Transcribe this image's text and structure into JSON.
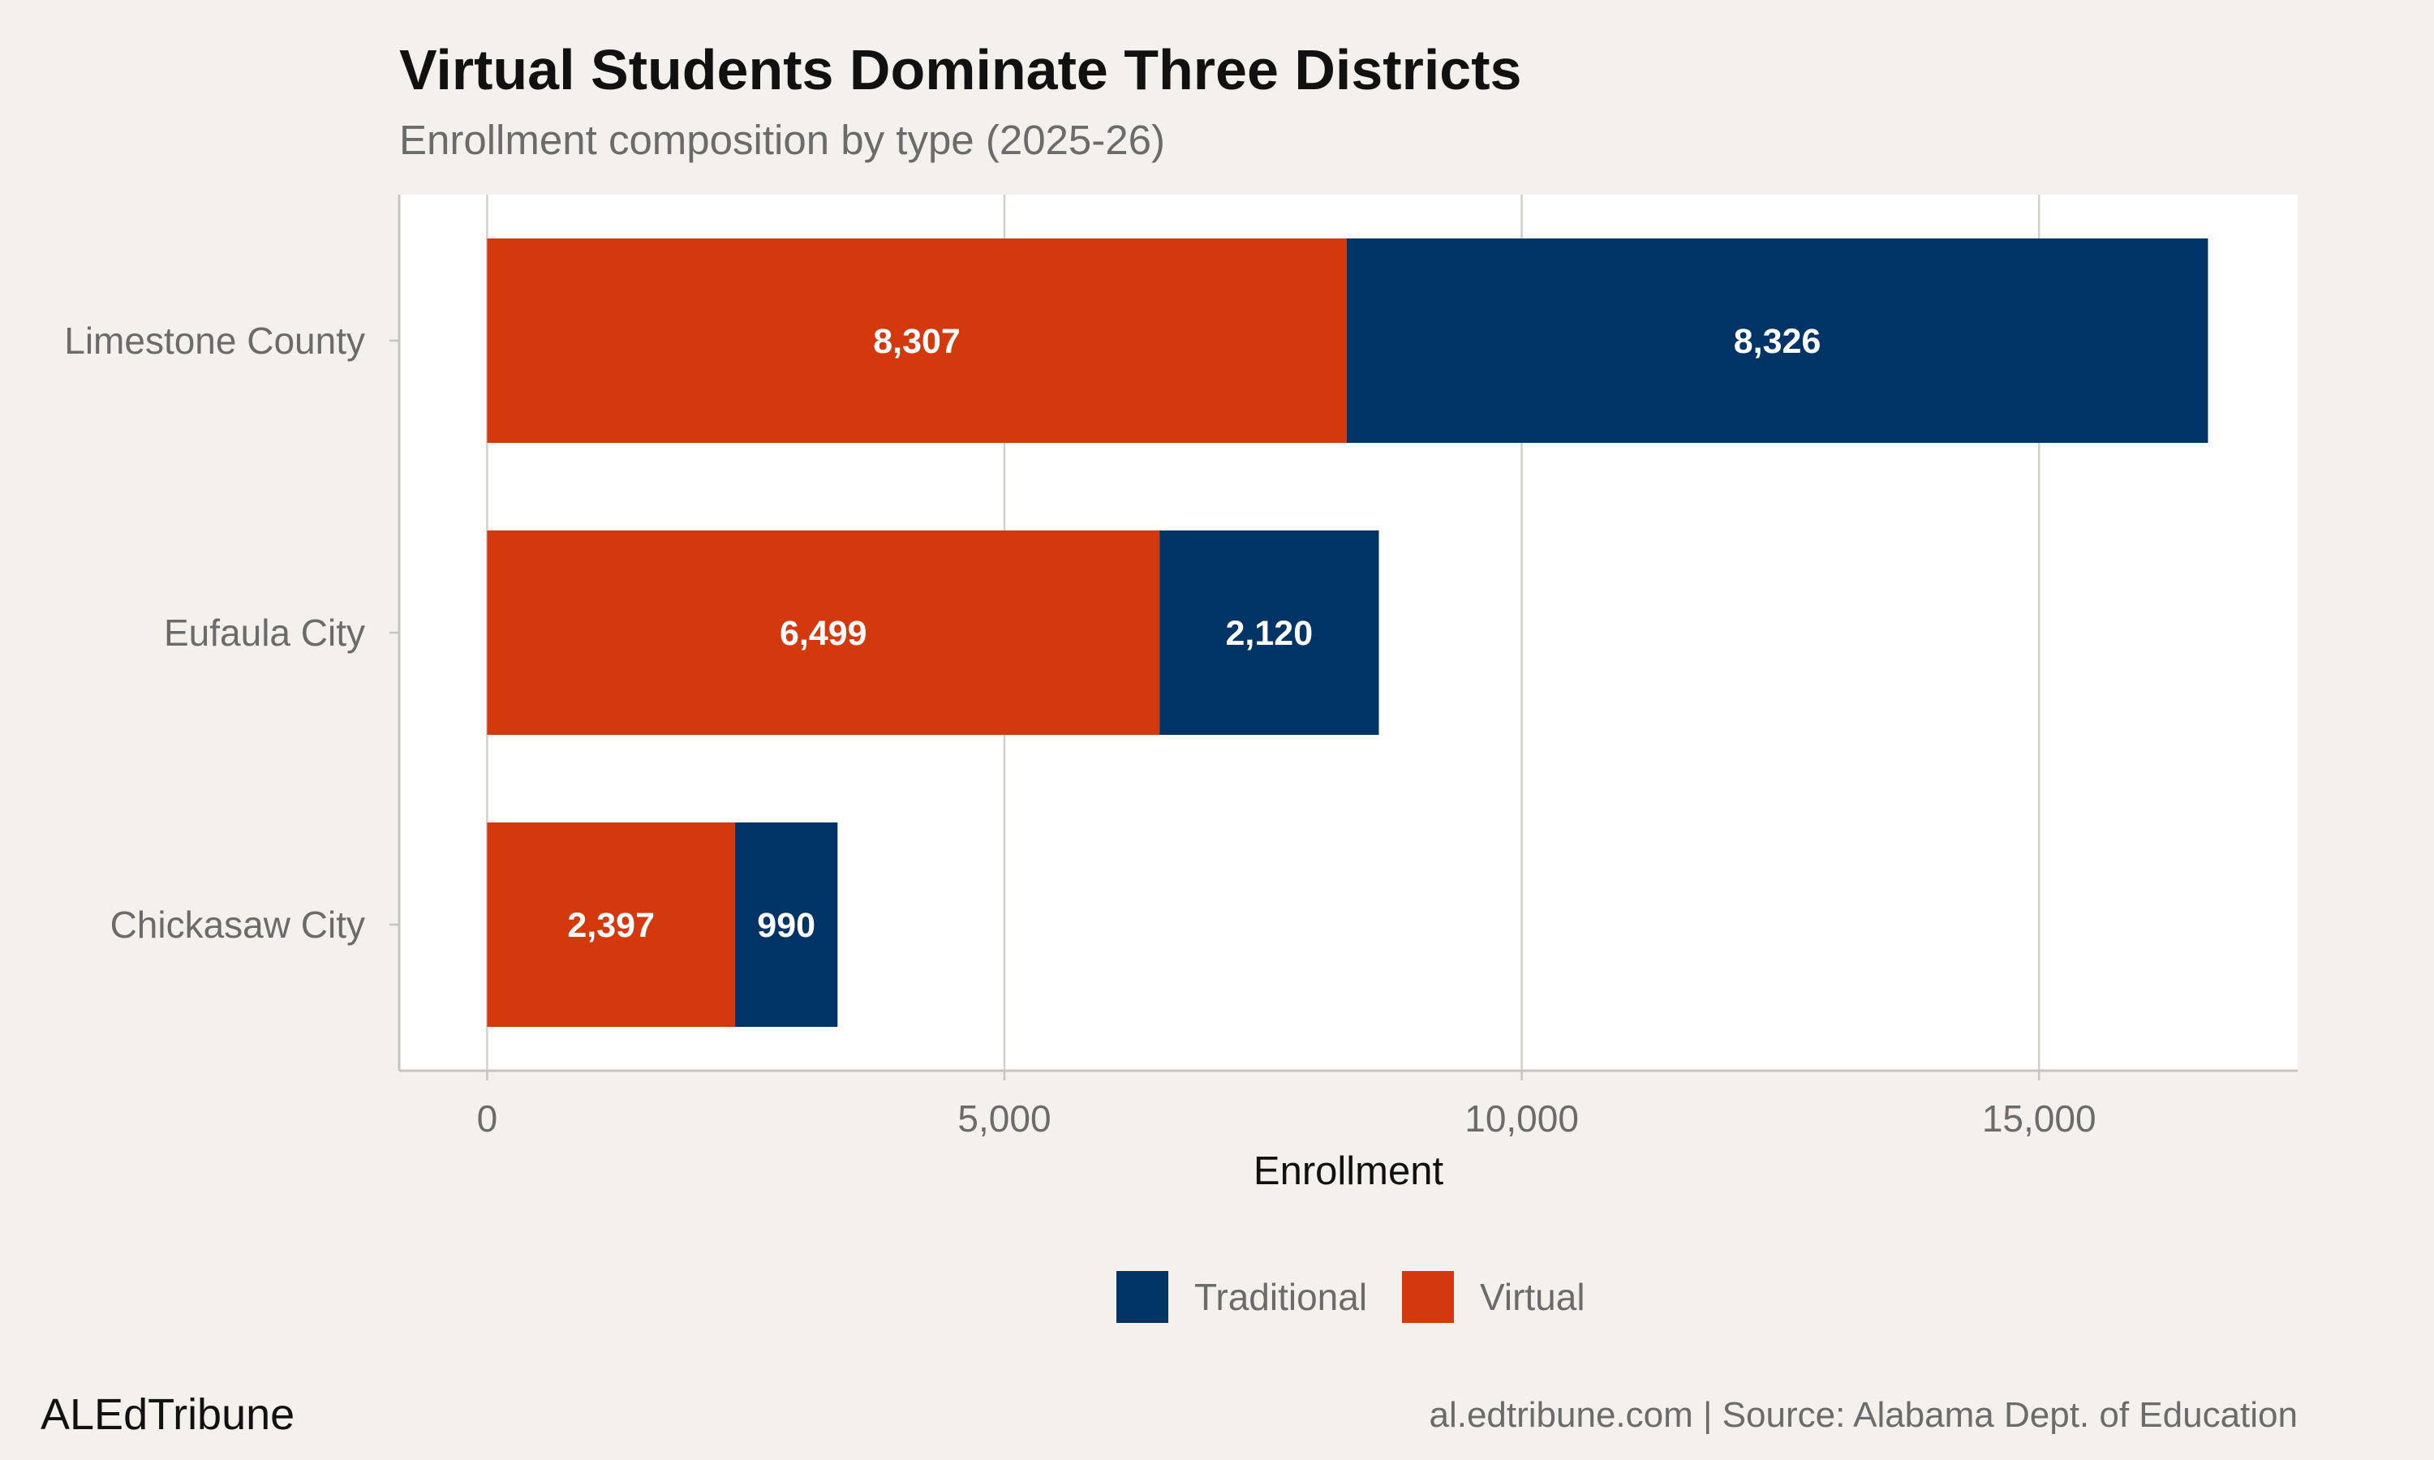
{
  "chart_data": {
    "type": "bar",
    "orientation": "horizontal",
    "stacked": true,
    "title": "Virtual Students Dominate Three Districts",
    "subtitle": "Enrollment composition by type (2025-26)",
    "xlabel": "Enrollment",
    "ylabel": "",
    "categories": [
      "Limestone County",
      "Eufaula City",
      "Chickasaw City"
    ],
    "series": [
      {
        "name": "Virtual",
        "color": "#d4380d",
        "values": [
          8307,
          6499,
          2397
        ],
        "labels": [
          "8,307",
          "6,499",
          "2,397"
        ]
      },
      {
        "name": "Traditional",
        "color": "#003366",
        "values": [
          8326,
          2120,
          990
        ],
        "labels": [
          "8,326",
          "2,120",
          "990"
        ]
      }
    ],
    "xlim": [
      -850,
      17500
    ],
    "xticks": [
      0,
      5000,
      10000,
      15000
    ],
    "xtick_labels": [
      "0",
      "5,000",
      "10,000",
      "15,000"
    ],
    "grid": "vertical",
    "legend": {
      "position": "bottom",
      "entries": [
        {
          "name": "Traditional",
          "color": "#003366"
        },
        {
          "name": "Virtual",
          "color": "#d4380d"
        }
      ]
    }
  },
  "footer": {
    "brand": "ALEdTribune",
    "source": "al.edtribune.com | Source: Alabama Dept. of Education"
  }
}
